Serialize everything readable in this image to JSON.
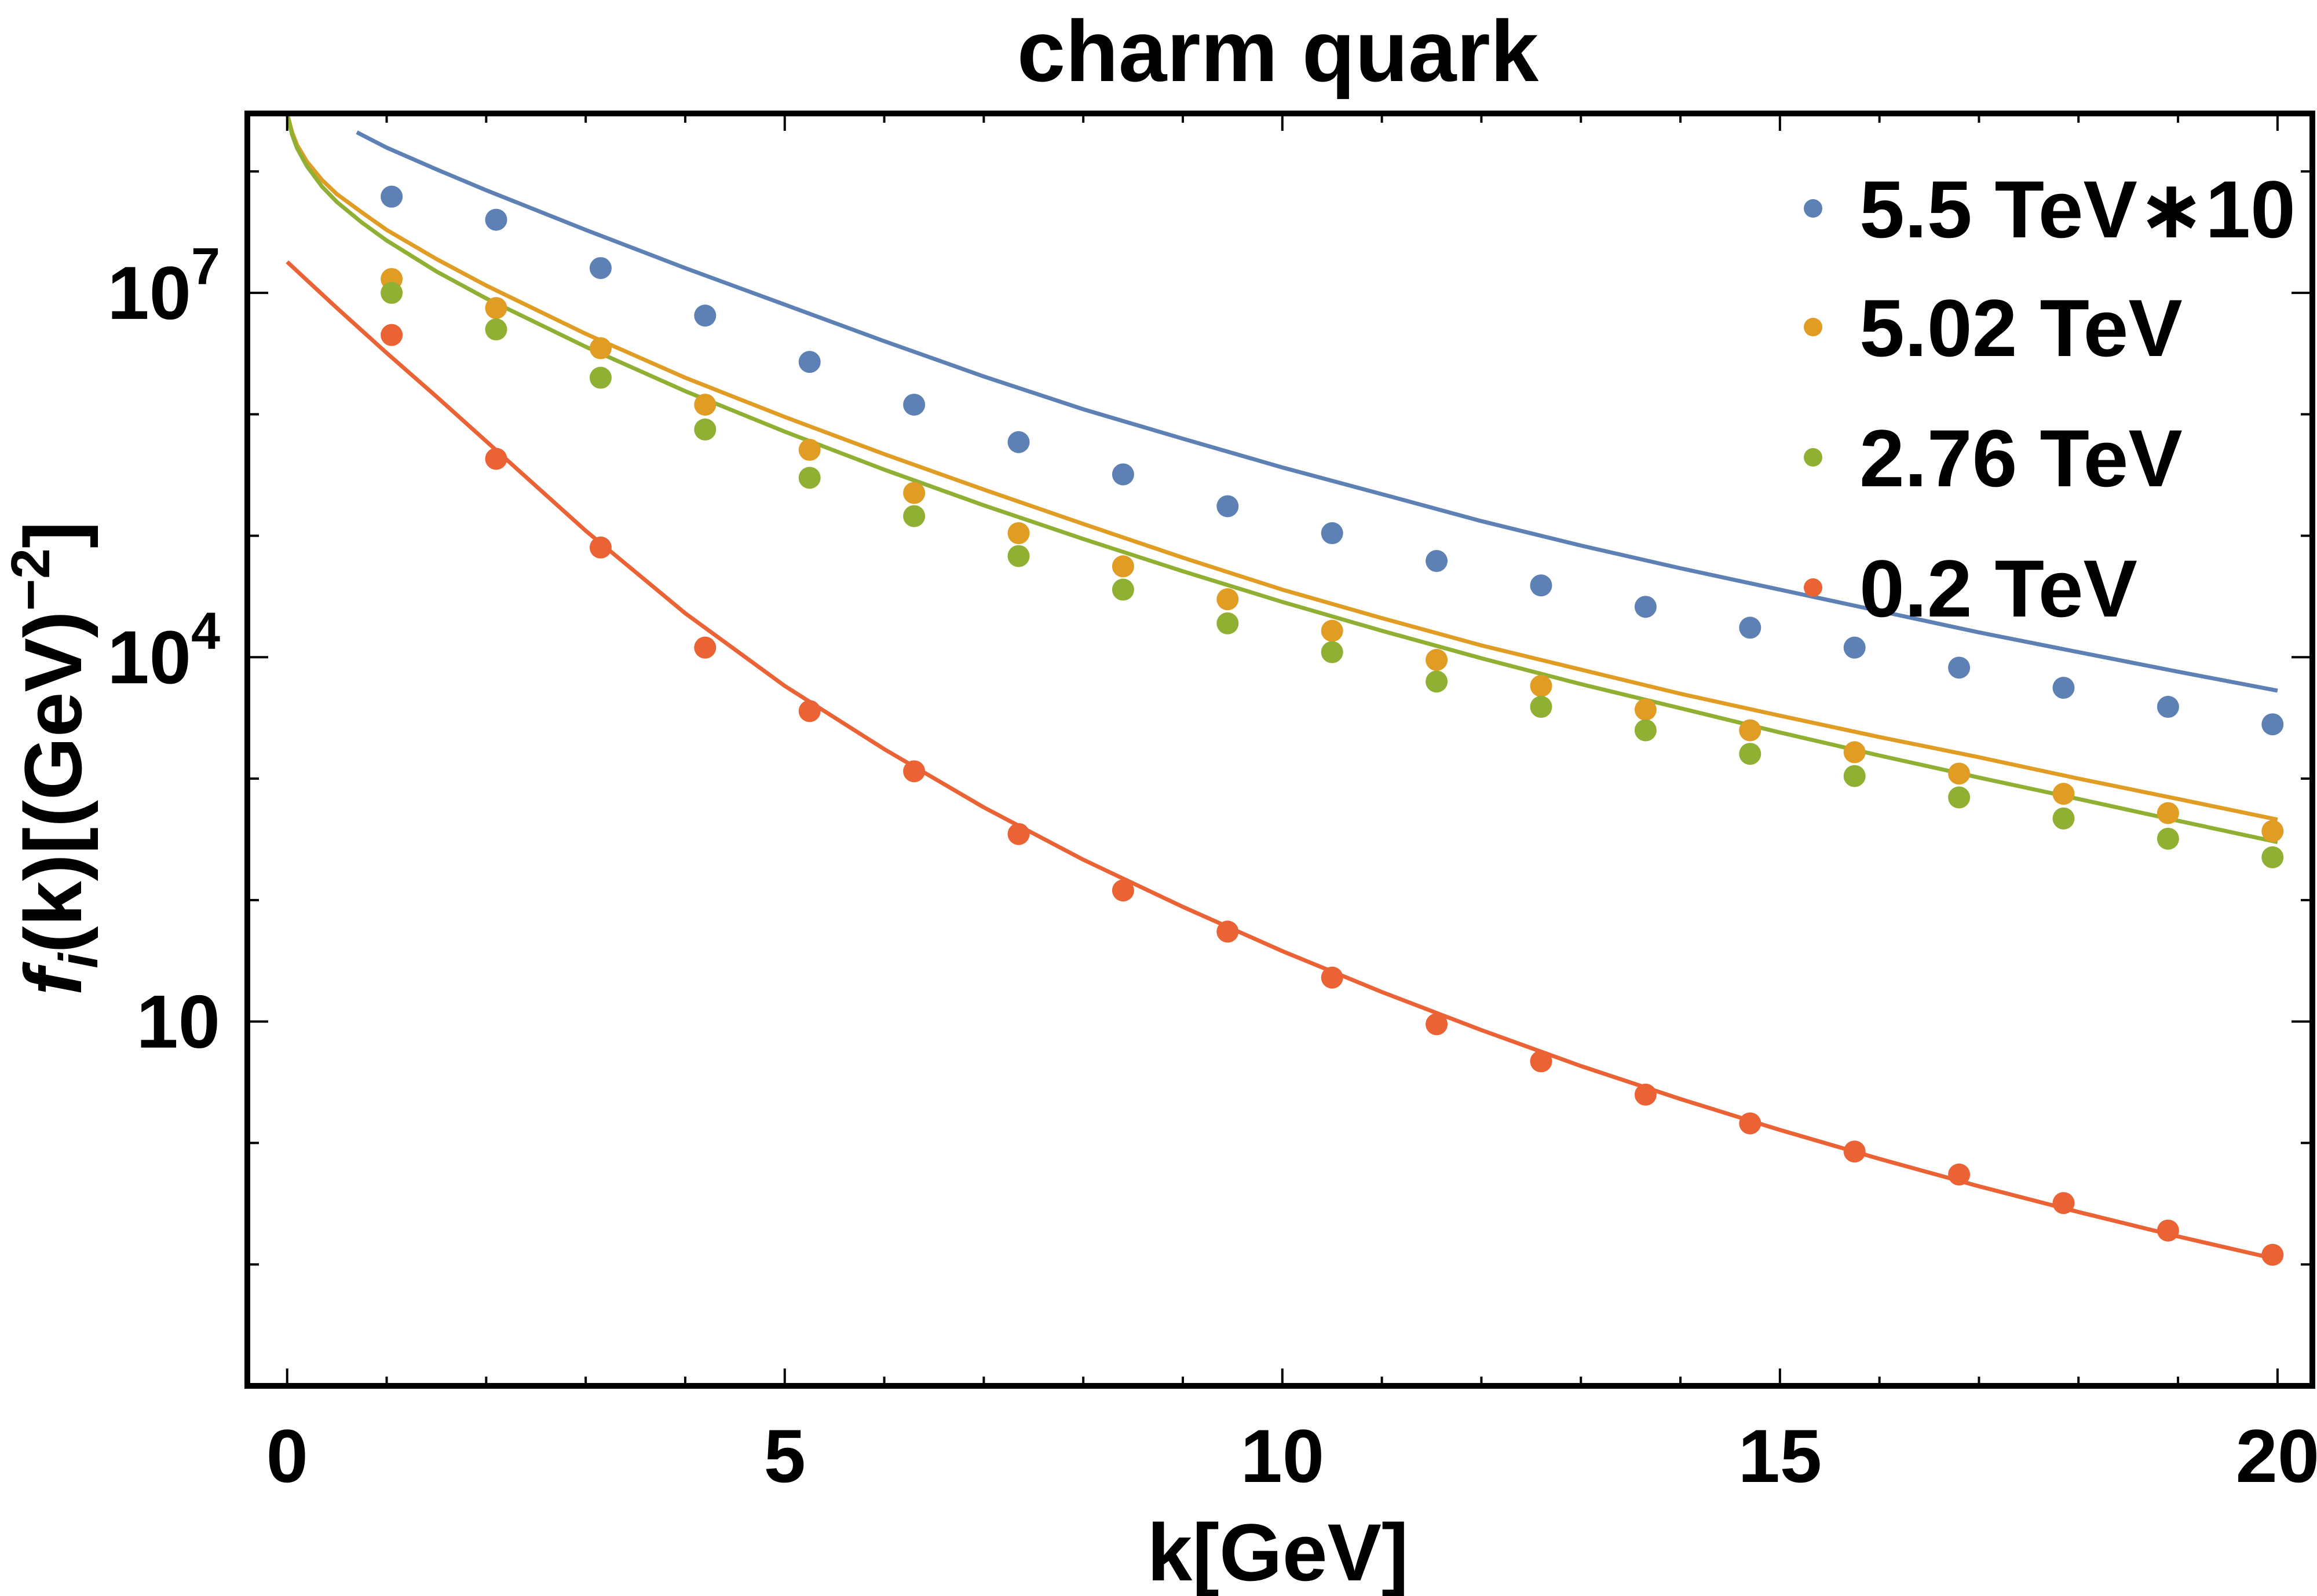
{
  "chart_data": {
    "type": "scatter",
    "title": "charm quark",
    "xlabel": "k[GeV]",
    "ylabel": "f_i(k)[(GeV)^-2]",
    "y_scale": "log",
    "xlim": [
      -0.4,
      20.35
    ],
    "ylim": [
      0.01,
      300000000
    ],
    "x_ticks": [
      {
        "value": 0,
        "label": "0"
      },
      {
        "value": 5,
        "label": "5"
      },
      {
        "value": 10,
        "label": "10"
      },
      {
        "value": 15,
        "label": "15"
      },
      {
        "value": 20,
        "label": "20"
      }
    ],
    "y_ticks": [
      {
        "value": 10,
        "base": "10",
        "exp": ""
      },
      {
        "value": 10000,
        "base": "10",
        "exp": "4"
      },
      {
        "value": 10000000,
        "base": "10",
        "exp": "7"
      }
    ],
    "legend_position": "top-right",
    "x": [
      1.05,
      2.1,
      3.15,
      4.2,
      5.25,
      6.3,
      7.35,
      8.4,
      9.45,
      10.5,
      11.55,
      12.6,
      13.65,
      14.7,
      15.75,
      16.8,
      17.85,
      18.9,
      19.95
    ],
    "series": [
      {
        "name": "5.5 TeV∗10",
        "color": "#5e81b5",
        "points": [
          62000000.0,
          40000000.0,
          16000000.0,
          6500000.0,
          2700000.0,
          1200000.0,
          590000.0,
          320000.0,
          175000.0,
          105000.0,
          62000.0,
          39000.0,
          26000.0,
          17500.0,
          12000.0,
          8200.0,
          5600.0,
          3900.0,
          2800.0
        ],
        "fit": [
          [
            0.7,
            210000000.0
          ],
          [
            1.0,
            157000000.0
          ],
          [
            1.5,
            104000000.0
          ],
          [
            2,
            70000000.0
          ],
          [
            3,
            33000000.0
          ],
          [
            4,
            16000000.0
          ],
          [
            5,
            8000000.0
          ],
          [
            6,
            4000000.0
          ],
          [
            7,
            2050000.0
          ],
          [
            8,
            1100000.0
          ],
          [
            9,
            630000.0
          ],
          [
            10,
            365000.0
          ],
          [
            11,
            220000.0
          ],
          [
            12,
            132000.0
          ],
          [
            13,
            83000.0
          ],
          [
            14,
            54000.0
          ],
          [
            15,
            36000.0
          ],
          [
            16,
            24000.0
          ],
          [
            17,
            16000.0
          ],
          [
            18,
            11000.0
          ],
          [
            19,
            7600.0
          ],
          [
            20,
            5300.0
          ]
        ]
      },
      {
        "name": "5.02 TeV",
        "color": "#e19c24",
        "points": [
          13000000.0,
          7500000.0,
          3500000.0,
          1200000.0,
          510000.0,
          225000.0,
          105000.0,
          56000.0,
          30000.0,
          16500.0,
          9500.0,
          5800.0,
          3700.0,
          2500.0,
          1650.0,
          1100.0,
          750.0,
          520.0,
          370.0
        ],
        "fit": [
          [
            0.0,
            300000000.0
          ],
          [
            0.05,
            210000000.0
          ],
          [
            0.1,
            165000000.0
          ],
          [
            0.2,
            120000000.0
          ],
          [
            0.35,
            85000000.0
          ],
          [
            0.5,
            65000000.0
          ],
          [
            0.75,
            46000000.0
          ],
          [
            1,
            33000000.0
          ],
          [
            1.5,
            19000000.0
          ],
          [
            2,
            11500000.0
          ],
          [
            3,
            4600000.0
          ],
          [
            4,
            2000000.0
          ],
          [
            5,
            950000.0
          ],
          [
            6,
            470000.0
          ],
          [
            7,
            240000.0
          ],
          [
            8,
            125000.0
          ],
          [
            9,
            66000.0
          ],
          [
            10,
            36000.0
          ],
          [
            11,
            21000.0
          ],
          [
            12,
            12500.0
          ],
          [
            13,
            7900.0
          ],
          [
            14,
            5000.0
          ],
          [
            15,
            3300.0
          ],
          [
            16,
            2200.0
          ],
          [
            17,
            1500.0
          ],
          [
            18,
            1000.0
          ],
          [
            19,
            680.0
          ],
          [
            20,
            460.0
          ]
        ]
      },
      {
        "name": "2.76 TeV",
        "color": "#8fb032",
        "points": [
          10000000.0,
          5000000.0,
          2000000.0,
          750000.0,
          300000.0,
          145000.0,
          68000.0,
          36000.0,
          19000.0,
          11000.0,
          6300.0,
          3900.0,
          2500.0,
          1600.0,
          1050.0,
          700.0,
          470.0,
          320.0,
          225.0
        ],
        "fit": [
          [
            0.0,
            300000000.0
          ],
          [
            0.05,
            200000000.0
          ],
          [
            0.1,
            155000000.0
          ],
          [
            0.2,
            110000000.0
          ],
          [
            0.35,
            75000000.0
          ],
          [
            0.5,
            56000000.0
          ],
          [
            0.75,
            38000000.0
          ],
          [
            1,
            27000000.0
          ],
          [
            1.5,
            15000000.0
          ],
          [
            2,
            9000000.0
          ],
          [
            3,
            3600000.0
          ],
          [
            4,
            1550000.0
          ],
          [
            5,
            720000.0
          ],
          [
            6,
            350000.0
          ],
          [
            7,
            178000.0
          ],
          [
            8,
            94000.0
          ],
          [
            9,
            51000.0
          ],
          [
            10,
            28500.0
          ],
          [
            11,
            16500.0
          ],
          [
            12,
            9800.0
          ],
          [
            13,
            6000.0
          ],
          [
            14,
            3800.0
          ],
          [
            15,
            2400.0
          ],
          [
            16,
            1550.0
          ],
          [
            17,
            1020.0
          ],
          [
            18,
            680.0
          ],
          [
            19,
            450.0
          ],
          [
            20,
            300.0
          ]
        ]
      },
      {
        "name": "0.2 TeV",
        "color": "#eb6235",
        "points": [
          4500000.0,
          430000.0,
          80000.0,
          12000.0,
          3600.0,
          1150.0,
          350.0,
          120.0,
          55,
          23,
          9.5,
          4.7,
          2.5,
          1.45,
          0.85,
          0.55,
          0.32,
          0.19,
          0.12
        ],
        "fit": [
          [
            0.0,
            18000000.0
          ],
          [
            0.5,
            7500000.0
          ],
          [
            1,
            3200000.0
          ],
          [
            1.5,
            1400000.0
          ],
          [
            2,
            600000.0
          ],
          [
            3,
            110000.0
          ],
          [
            4,
            23000.0
          ],
          [
            5,
            5800.0
          ],
          [
            6,
            1750.0
          ],
          [
            7,
            580.0
          ],
          [
            8,
            215.0
          ],
          [
            9,
            88
          ],
          [
            10,
            38
          ],
          [
            11,
            17.5
          ],
          [
            12,
            8.5
          ],
          [
            13,
            4.3
          ],
          [
            14,
            2.3
          ],
          [
            15,
            1.28
          ],
          [
            16,
            0.74
          ],
          [
            17,
            0.44
          ],
          [
            18,
            0.27
          ],
          [
            19,
            0.17
          ],
          [
            20,
            0.11
          ]
        ]
      }
    ]
  }
}
